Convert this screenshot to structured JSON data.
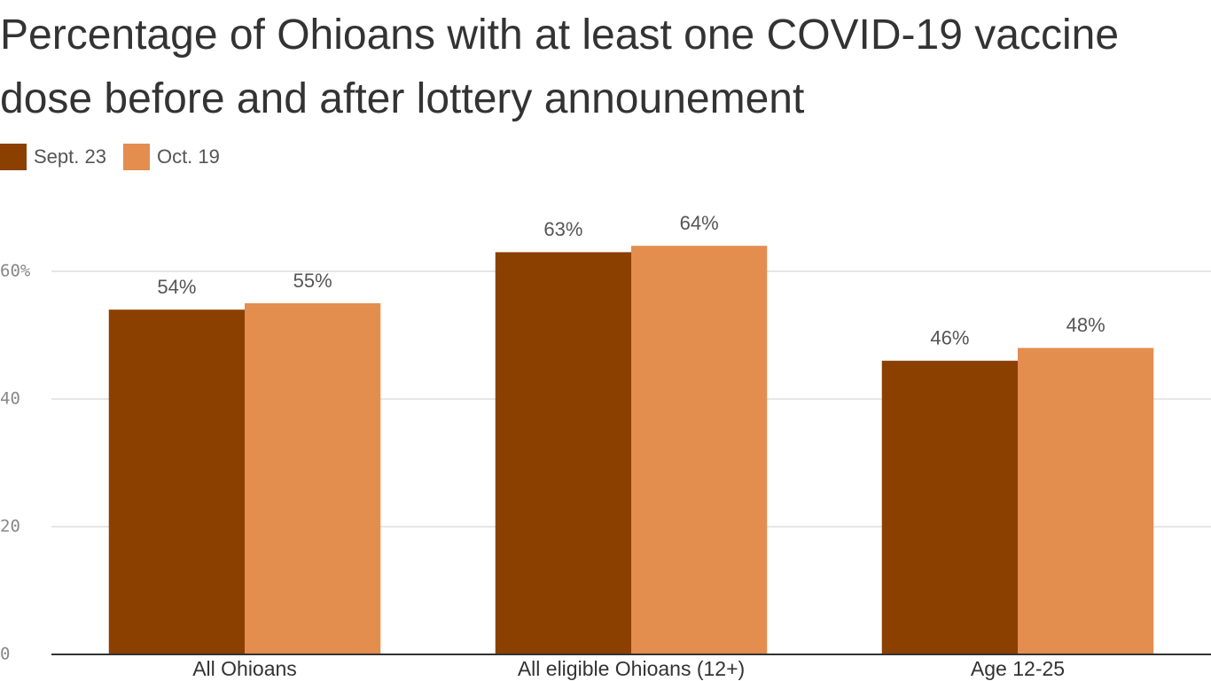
{
  "chart_data": {
    "type": "bar",
    "title": "Percentage of Ohioans with at least one COVID-19 vaccine dose before and after lottery announement",
    "categories": [
      "All Ohioans",
      "All eligible Ohioans (12+)",
      "Age 12-25"
    ],
    "series": [
      {
        "name": "Sept. 23",
        "color": "#8b4000",
        "values": [
          54,
          63,
          46
        ],
        "value_labels": [
          "54%",
          "63%",
          "46%"
        ]
      },
      {
        "name": "Oct. 19",
        "color": "#e38d4f",
        "values": [
          55,
          64,
          48
        ],
        "value_labels": [
          "55%",
          "64%",
          "48%"
        ]
      }
    ],
    "ylim": [
      0,
      65
    ],
    "yticks": [
      0,
      20,
      40,
      {
        "value": 60,
        "label": "60%"
      }
    ],
    "grid": true
  }
}
